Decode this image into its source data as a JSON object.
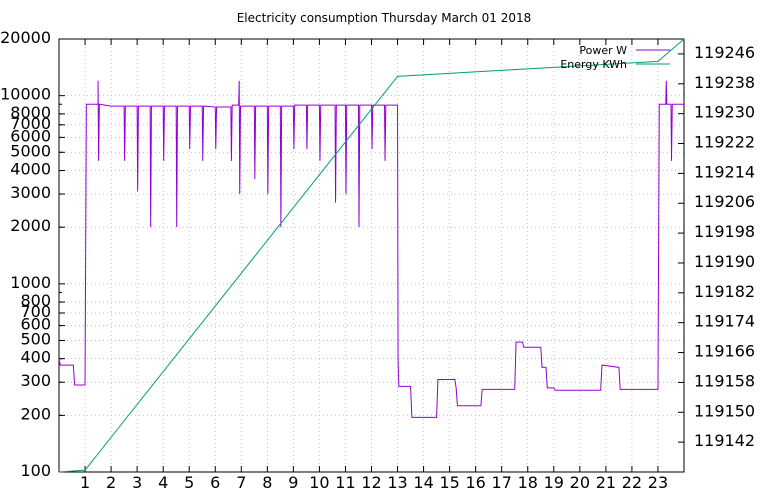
{
  "chart_data": {
    "type": "line",
    "title": "Electricity consumption Thursday March 01 2018",
    "xlabel": "",
    "ylabel": "",
    "y2label": "",
    "xlim": [
      0,
      24
    ],
    "ylim": [
      100,
      20000
    ],
    "y_scale": "log",
    "y2lim": [
      119134,
      119250
    ],
    "grid": true,
    "legend_position": "top-right",
    "x_ticks": [
      1,
      2,
      3,
      4,
      5,
      6,
      7,
      8,
      9,
      10,
      11,
      12,
      13,
      14,
      15,
      16,
      17,
      18,
      19,
      20,
      21,
      22,
      23
    ],
    "y_ticks": [
      100,
      200,
      300,
      400,
      500,
      600,
      700,
      800,
      1000,
      2000,
      3000,
      4000,
      5000,
      6000,
      7000,
      8000,
      10000,
      20000
    ],
    "y2_ticks": [
      119142,
      119150,
      119158,
      119166,
      119174,
      119182,
      119190,
      119198,
      119206,
      119214,
      119222,
      119230,
      119238,
      119246
    ],
    "colors": {
      "power": "#9400d3",
      "energy": "#009e73"
    },
    "series": [
      {
        "name": "Power W",
        "axis": "left",
        "color": "#9400d3",
        "points": [
          [
            0.0,
            400
          ],
          [
            0.05,
            370
          ],
          [
            0.55,
            370
          ],
          [
            0.6,
            290
          ],
          [
            1.0,
            290
          ],
          [
            1.05,
            9000
          ],
          [
            1.5,
            9000
          ],
          [
            1.5,
            12000
          ],
          [
            1.52,
            4500
          ],
          [
            1.55,
            9000
          ],
          [
            2.0,
            8800
          ],
          [
            2.5,
            8800
          ],
          [
            2.52,
            4500
          ],
          [
            2.55,
            8800
          ],
          [
            3.0,
            8800
          ],
          [
            3.02,
            3100
          ],
          [
            3.05,
            8800
          ],
          [
            3.5,
            8800
          ],
          [
            3.52,
            2000
          ],
          [
            3.55,
            8800
          ],
          [
            4.0,
            8800
          ],
          [
            4.02,
            4500
          ],
          [
            4.05,
            8800
          ],
          [
            4.5,
            8800
          ],
          [
            4.52,
            2000
          ],
          [
            4.55,
            8800
          ],
          [
            5.0,
            8800
          ],
          [
            5.02,
            5200
          ],
          [
            5.05,
            8800
          ],
          [
            5.5,
            8800
          ],
          [
            5.52,
            4500
          ],
          [
            5.55,
            8800
          ],
          [
            6.0,
            8700
          ],
          [
            6.02,
            5200
          ],
          [
            6.05,
            8700
          ],
          [
            6.6,
            8700
          ],
          [
            6.62,
            4500
          ],
          [
            6.65,
            8900
          ],
          [
            6.9,
            8900
          ],
          [
            6.92,
            12000
          ],
          [
            6.94,
            3000
          ],
          [
            6.97,
            8800
          ],
          [
            7.5,
            8800
          ],
          [
            7.52,
            3600
          ],
          [
            7.55,
            8800
          ],
          [
            8.0,
            8800
          ],
          [
            8.02,
            3000
          ],
          [
            8.05,
            8800
          ],
          [
            8.5,
            8800
          ],
          [
            8.52,
            2000
          ],
          [
            8.55,
            8800
          ],
          [
            9.0,
            8800
          ],
          [
            9.02,
            5200
          ],
          [
            9.05,
            8900
          ],
          [
            9.5,
            8900
          ],
          [
            9.52,
            5200
          ],
          [
            9.55,
            8900
          ],
          [
            10.0,
            8900
          ],
          [
            10.02,
            4500
          ],
          [
            10.05,
            8900
          ],
          [
            10.6,
            8900
          ],
          [
            10.62,
            2700
          ],
          [
            10.65,
            8900
          ],
          [
            11.0,
            8900
          ],
          [
            11.02,
            3000
          ],
          [
            11.05,
            8900
          ],
          [
            11.5,
            8900
          ],
          [
            11.52,
            2000
          ],
          [
            11.55,
            8900
          ],
          [
            12.0,
            8900
          ],
          [
            12.02,
            5200
          ],
          [
            12.05,
            8900
          ],
          [
            12.5,
            8900
          ],
          [
            12.52,
            4500
          ],
          [
            12.55,
            8900
          ],
          [
            13.0,
            8900
          ],
          [
            13.02,
            400
          ],
          [
            13.05,
            285
          ],
          [
            13.5,
            285
          ],
          [
            13.55,
            195
          ],
          [
            14.5,
            195
          ],
          [
            14.55,
            310
          ],
          [
            15.2,
            310
          ],
          [
            15.25,
            280
          ],
          [
            15.3,
            225
          ],
          [
            16.2,
            225
          ],
          [
            16.25,
            275
          ],
          [
            17.5,
            275
          ],
          [
            17.55,
            490
          ],
          [
            17.8,
            490
          ],
          [
            17.85,
            460
          ],
          [
            18.5,
            460
          ],
          [
            18.55,
            360
          ],
          [
            18.7,
            360
          ],
          [
            18.75,
            280
          ],
          [
            19.0,
            280
          ],
          [
            19.05,
            272
          ],
          [
            20.8,
            272
          ],
          [
            20.85,
            370
          ],
          [
            21.5,
            360
          ],
          [
            21.55,
            275
          ],
          [
            23.0,
            275
          ],
          [
            23.05,
            9000
          ],
          [
            23.3,
            9000
          ],
          [
            23.32,
            12000
          ],
          [
            23.34,
            9000
          ],
          [
            23.5,
            9000
          ],
          [
            23.52,
            4500
          ],
          [
            23.55,
            9000
          ],
          [
            24.0,
            9000
          ]
        ]
      },
      {
        "name": "Energy KWh",
        "axis": "right",
        "color": "#009e73",
        "points": [
          [
            0.0,
            119134
          ],
          [
            1.0,
            119134.5
          ],
          [
            13.0,
            119240
          ],
          [
            18.0,
            119242
          ],
          [
            23.0,
            119244
          ],
          [
            24.0,
            119250
          ]
        ]
      }
    ]
  }
}
